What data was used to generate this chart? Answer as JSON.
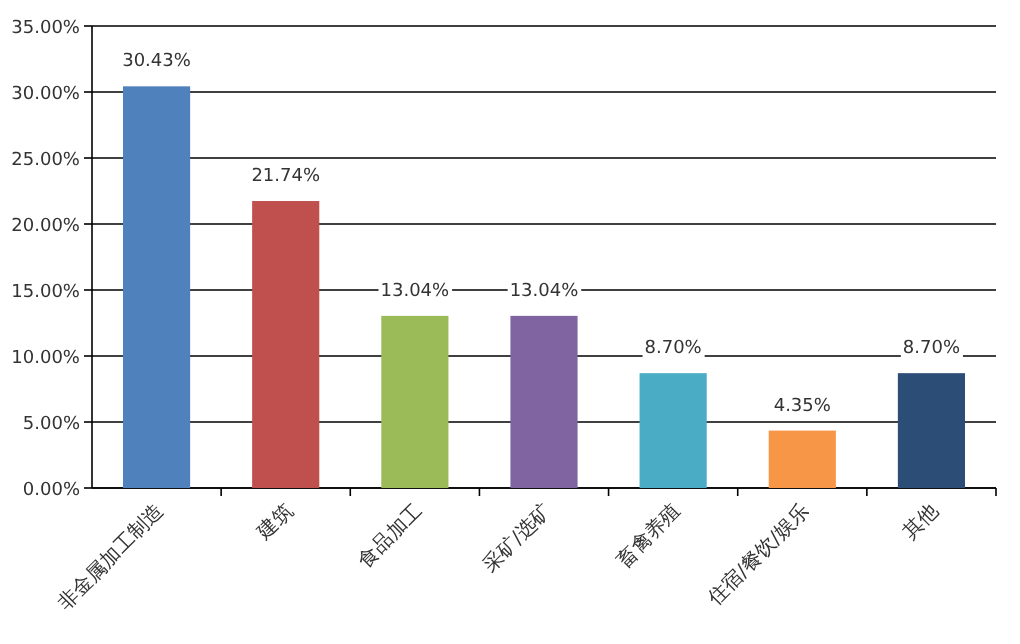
{
  "chart_data": {
    "type": "bar",
    "categories": [
      "非金属加工制造",
      "建筑",
      "食品加工",
      "采矿/选矿",
      "畜禽养殖",
      "住宿/餐饮/娱乐",
      "其他"
    ],
    "values": [
      30.43,
      21.74,
      13.04,
      13.04,
      8.7,
      4.35,
      8.7
    ],
    "colors": [
      "#4f81bd",
      "#c0504d",
      "#9bbb59",
      "#8064a2",
      "#4bacc6",
      "#f79646",
      "#2c4d75"
    ],
    "value_labels": [
      "30.43%",
      "21.74%",
      "13.04%",
      "13.04%",
      "8.70%",
      "4.35%",
      "8.70%"
    ],
    "ylim": [
      0,
      35
    ],
    "yticks": [
      {
        "value": 0,
        "label": "0.00%"
      },
      {
        "value": 5,
        "label": "5.00%"
      },
      {
        "value": 10,
        "label": "10.00%"
      },
      {
        "value": 15,
        "label": "15.00%"
      },
      {
        "value": 20,
        "label": "20.00%"
      },
      {
        "value": 25,
        "label": "25.00%"
      },
      {
        "value": 30,
        "label": "30.00%"
      },
      {
        "value": 35,
        "label": "35.00%"
      }
    ],
    "grid": "y"
  }
}
